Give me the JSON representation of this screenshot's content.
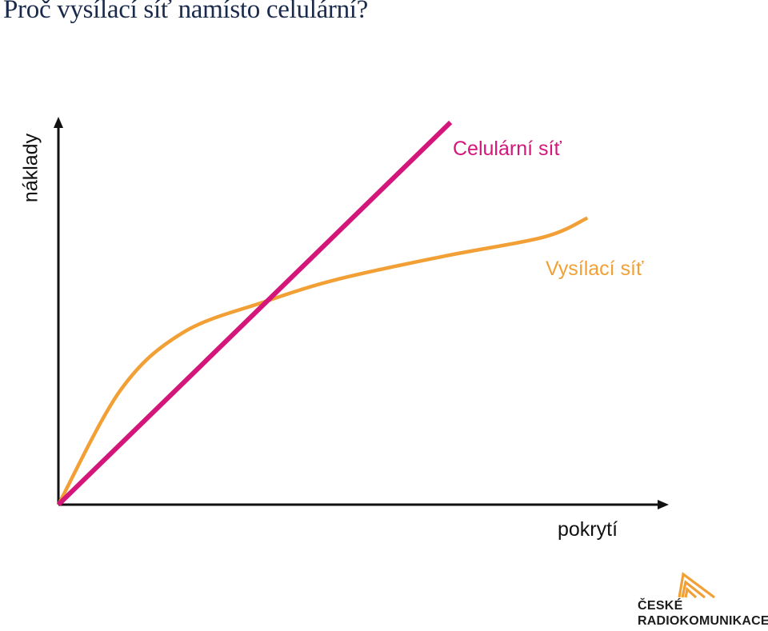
{
  "title": "Proč vysílací síť namísto celulární?",
  "chart_data": {
    "type": "line",
    "xlabel": "pokrytí",
    "ylabel": "náklady",
    "axis_ticks": false,
    "grid": false,
    "series": [
      {
        "name": "Celulární síť",
        "color": "#d4157a",
        "points": [
          [
            0,
            0
          ],
          [
            0.63,
            1.0
          ]
        ]
      },
      {
        "name": "Vysílací síť",
        "color": "#f2a035",
        "points": [
          [
            0,
            0
          ],
          [
            0.1,
            0.3
          ],
          [
            0.2,
            0.45
          ],
          [
            0.33,
            0.53
          ],
          [
            0.45,
            0.59
          ],
          [
            0.62,
            0.65
          ],
          [
            0.78,
            0.7
          ],
          [
            0.85,
            0.75
          ]
        ]
      }
    ]
  },
  "logo": {
    "line1": "ČESKÉ",
    "line2": "RADIOKOMUNIKACE",
    "color": "#f2a035"
  },
  "colors": {
    "axis": "#111111",
    "title": "#1a2a4a"
  }
}
